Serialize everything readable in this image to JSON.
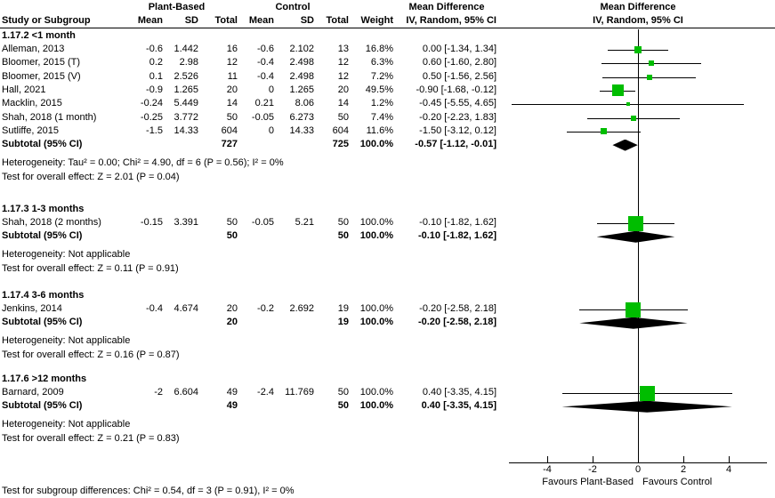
{
  "title_groups": {
    "plant_based": "Plant-Based",
    "control": "Control"
  },
  "headers": {
    "study": "Study or Subgroup",
    "mean": "Mean",
    "sd": "SD",
    "total": "Total",
    "weight": "Weight",
    "md": "Mean Difference",
    "ci": "IV, Random, 95% CI"
  },
  "sections": [
    {
      "title": "1.17.2 <1 month",
      "studies": [
        {
          "study": "Alleman, 2013",
          "pb_mean": "-0.6",
          "pb_sd": "1.442",
          "pb_total": "16",
          "c_mean": "-0.6",
          "c_sd": "2.102",
          "c_total": "13",
          "weight": "16.8%",
          "ci_text": "0.00 [-1.34, 1.34]",
          "md": 0.0,
          "lo": -1.34,
          "hi": 1.34,
          "w": 16.8
        },
        {
          "study": "Bloomer, 2015 (T)",
          "pb_mean": "0.2",
          "pb_sd": "2.98",
          "pb_total": "12",
          "c_mean": "-0.4",
          "c_sd": "2.498",
          "c_total": "12",
          "weight": "6.3%",
          "ci_text": "0.60 [-1.60, 2.80]",
          "md": 0.6,
          "lo": -1.6,
          "hi": 2.8,
          "w": 6.3
        },
        {
          "study": "Bloomer, 2015 (V)",
          "pb_mean": "0.1",
          "pb_sd": "2.526",
          "pb_total": "11",
          "c_mean": "-0.4",
          "c_sd": "2.498",
          "c_total": "12",
          "weight": "7.2%",
          "ci_text": "0.50 [-1.56, 2.56]",
          "md": 0.5,
          "lo": -1.56,
          "hi": 2.56,
          "w": 7.2
        },
        {
          "study": "Hall, 2021",
          "pb_mean": "-0.9",
          "pb_sd": "1.265",
          "pb_total": "20",
          "c_mean": "0",
          "c_sd": "1.265",
          "c_total": "20",
          "weight": "49.5%",
          "ci_text": "-0.90 [-1.68, -0.12]",
          "md": -0.9,
          "lo": -1.68,
          "hi": -0.12,
          "w": 49.5
        },
        {
          "study": "Macklin, 2015",
          "pb_mean": "-0.24",
          "pb_sd": "5.449",
          "pb_total": "14",
          "c_mean": "0.21",
          "c_sd": "8.06",
          "c_total": "14",
          "weight": "1.2%",
          "ci_text": "-0.45 [-5.55, 4.65]",
          "md": -0.45,
          "lo": -5.55,
          "hi": 4.65,
          "w": 1.2
        },
        {
          "study": "Shah, 2018 (1 month)",
          "pb_mean": "-0.25",
          "pb_sd": "3.772",
          "pb_total": "50",
          "c_mean": "-0.05",
          "c_sd": "6.273",
          "c_total": "50",
          "weight": "7.4%",
          "ci_text": "-0.20 [-2.23, 1.83]",
          "md": -0.2,
          "lo": -2.23,
          "hi": 1.83,
          "w": 7.4
        },
        {
          "study": "Sutliffe, 2015",
          "pb_mean": "-1.5",
          "pb_sd": "14.33",
          "pb_total": "604",
          "c_mean": "0",
          "c_sd": "14.33",
          "c_total": "604",
          "weight": "11.6%",
          "ci_text": "-1.50 [-3.12, 0.12]",
          "md": -1.5,
          "lo": -3.12,
          "hi": 0.12,
          "w": 11.6
        }
      ],
      "subtotal": {
        "label": "Subtotal (95% CI)",
        "pb_total": "727",
        "c_total": "725",
        "weight": "100.0%",
        "ci_text": "-0.57 [-1.12, -0.01]",
        "md": -0.57,
        "lo": -1.12,
        "hi": -0.01
      },
      "footnotes": [
        "Heterogeneity: Tau² = 0.00; Chi² = 4.90, df = 6 (P = 0.56); I² = 0%",
        "Test for overall effect: Z = 2.01 (P = 0.04)"
      ]
    },
    {
      "title": "1.17.3 1-3 months",
      "studies": [
        {
          "study": "Shah, 2018 (2 months)",
          "pb_mean": "-0.15",
          "pb_sd": "3.391",
          "pb_total": "50",
          "c_mean": "-0.05",
          "c_sd": "5.21",
          "c_total": "50",
          "weight": "100.0%",
          "ci_text": "-0.10 [-1.82, 1.62]",
          "md": -0.1,
          "lo": -1.82,
          "hi": 1.62,
          "w": 100
        }
      ],
      "subtotal": {
        "label": "Subtotal (95% CI)",
        "pb_total": "50",
        "c_total": "50",
        "weight": "100.0%",
        "ci_text": "-0.10 [-1.82, 1.62]",
        "md": -0.1,
        "lo": -1.82,
        "hi": 1.62
      },
      "footnotes": [
        "Heterogeneity: Not applicable",
        "Test for overall effect: Z = 0.11 (P = 0.91)"
      ]
    },
    {
      "title": "1.17.4 3-6 months",
      "studies": [
        {
          "study": "Jenkins, 2014",
          "pb_mean": "-0.4",
          "pb_sd": "4.674",
          "pb_total": "20",
          "c_mean": "-0.2",
          "c_sd": "2.692",
          "c_total": "19",
          "weight": "100.0%",
          "ci_text": "-0.20 [-2.58, 2.18]",
          "md": -0.2,
          "lo": -2.58,
          "hi": 2.18,
          "w": 100
        }
      ],
      "subtotal": {
        "label": "Subtotal (95% CI)",
        "pb_total": "20",
        "c_total": "19",
        "weight": "100.0%",
        "ci_text": "-0.20 [-2.58, 2.18]",
        "md": -0.2,
        "lo": -2.58,
        "hi": 2.18
      },
      "footnotes": [
        "Heterogeneity: Not applicable",
        "Test for overall effect: Z = 0.16 (P = 0.87)"
      ]
    },
    {
      "title": "1.17.6 >12 months",
      "studies": [
        {
          "study": "Barnard, 2009",
          "pb_mean": "-2",
          "pb_sd": "6.604",
          "pb_total": "49",
          "c_mean": "-2.4",
          "c_sd": "11.769",
          "c_total": "50",
          "weight": "100.0%",
          "ci_text": "0.40 [-3.35, 4.15]",
          "md": 0.4,
          "lo": -3.35,
          "hi": 4.15,
          "w": 100
        }
      ],
      "subtotal": {
        "label": "Subtotal (95% CI)",
        "pb_total": "49",
        "c_total": "50",
        "weight": "100.0%",
        "ci_text": "0.40 [-3.35, 4.15]",
        "md": 0.4,
        "lo": -3.35,
        "hi": 4.15
      },
      "footnotes": [
        "Heterogeneity: Not applicable",
        "Test for overall effect: Z = 0.21 (P = 0.83)"
      ]
    }
  ],
  "axis": {
    "ticks": [
      -4,
      -2,
      0,
      2,
      4
    ],
    "favours_left": "Favours Plant-Based",
    "favours_right": "Favours Control"
  },
  "footer": "Test for subgroup differences: Chi² = 0.54, df = 3 (P = 0.91), I² = 0%",
  "colors": {
    "marker_green": "#00bd00",
    "diamond_black": "#000000"
  },
  "chart_data": {
    "type": "scatter",
    "variant": "forest-plot",
    "title": "Mean Difference IV, Random, 95% CI",
    "xlim": [
      -5.7,
      5.7
    ],
    "xticks": [
      -4,
      -2,
      0,
      2,
      4
    ],
    "xlabel_left": "Favours Plant-Based",
    "xlabel_right": "Favours Control",
    "point_format": [
      "study",
      "mean_difference",
      "ci_low",
      "ci_high",
      "weight_pct"
    ],
    "groups": [
      {
        "name": "1.17.2 <1 month",
        "points": [
          [
            "Alleman, 2013",
            0.0,
            -1.34,
            1.34,
            16.8
          ],
          [
            "Bloomer, 2015 (T)",
            0.6,
            -1.6,
            2.8,
            6.3
          ],
          [
            "Bloomer, 2015 (V)",
            0.5,
            -1.56,
            2.56,
            7.2
          ],
          [
            "Hall, 2021",
            -0.9,
            -1.68,
            -0.12,
            49.5
          ],
          [
            "Macklin, 2015",
            -0.45,
            -5.55,
            4.65,
            1.2
          ],
          [
            "Shah, 2018 (1 month)",
            -0.2,
            -2.23,
            1.83,
            7.4
          ],
          [
            "Sutliffe, 2015",
            -1.5,
            -3.12,
            0.12,
            11.6
          ]
        ],
        "subtotal": [
          -0.57,
          -1.12,
          -0.01
        ]
      },
      {
        "name": "1.17.3 1-3 months",
        "points": [
          [
            "Shah, 2018 (2 months)",
            -0.1,
            -1.82,
            1.62,
            100.0
          ]
        ],
        "subtotal": [
          -0.1,
          -1.82,
          1.62
        ]
      },
      {
        "name": "1.17.4 3-6 months",
        "points": [
          [
            "Jenkins, 2014",
            -0.2,
            -2.58,
            2.18,
            100.0
          ]
        ],
        "subtotal": [
          -0.2,
          -2.58,
          2.18
        ]
      },
      {
        "name": "1.17.6 >12 months",
        "points": [
          [
            "Barnard, 2009",
            0.4,
            -3.35,
            4.15,
            100.0
          ]
        ],
        "subtotal": [
          0.4,
          -3.35,
          4.15
        ]
      }
    ]
  }
}
